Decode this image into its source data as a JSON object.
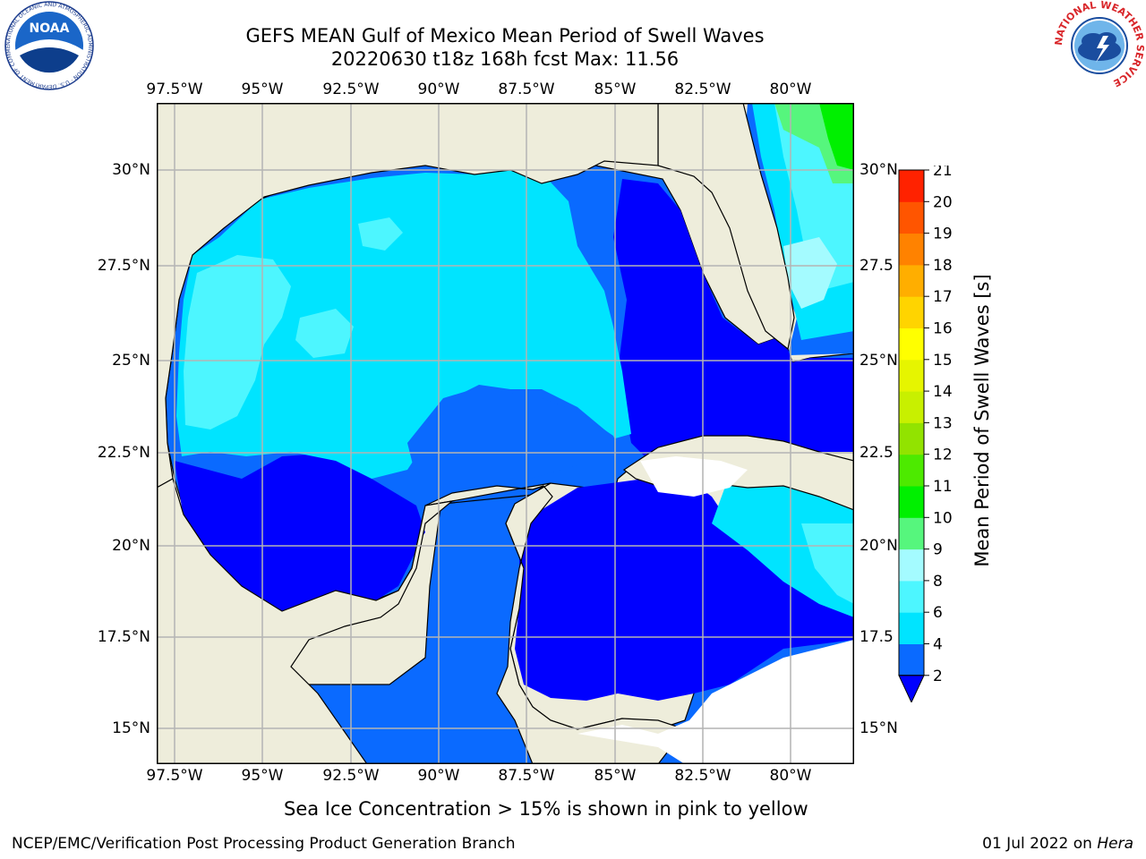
{
  "title": {
    "line1": "GEFS MEAN Gulf of Mexico Mean Period of Swell Waves",
    "line2": "20220630 t18z 168h fcst   Max: 11.56"
  },
  "map": {
    "lon_ticks": [
      "97.5°W",
      "95°W",
      "92.5°W",
      "90°W",
      "87.5°W",
      "85°W",
      "82.5°W",
      "80°W"
    ],
    "lat_ticks_left": [
      "30°N",
      "27.5°N",
      "25°N",
      "22.5°N",
      "20°N",
      "17.5°N",
      "15°N"
    ],
    "lat_ticks_right": [
      "30°N",
      "27.5",
      "25°N",
      "22.5",
      "20°N",
      "17.5",
      "15°N"
    ],
    "land_color": "#eeeddb",
    "no_data_color": "#ffffff",
    "grid_color": "#b4b4b4"
  },
  "colorbar": {
    "label": "Mean Period of Swell Waves [s]",
    "tick_labels": [
      "2",
      "4",
      "6",
      "8",
      "9",
      "10",
      "11",
      "12",
      "13",
      "14",
      "15",
      "16",
      "17",
      "18",
      "19",
      "20",
      "21"
    ],
    "colors": [
      "#0a6aff",
      "#00e4ff",
      "#4df6ff",
      "#a4fbff",
      "#56f67d",
      "#00f000",
      "#4dea00",
      "#92e300",
      "#c8f000",
      "#e6f500",
      "#ffff00",
      "#ffd400",
      "#ffae00",
      "#ff8200",
      "#ff5500",
      "#ff2200"
    ],
    "under_color": "#0000ff"
  },
  "caption": "Sea Ice Concentration > 15% is shown in pink to yellow",
  "footer": {
    "left": "NCEP/EMC/Verification Post Processing Product Generation Branch",
    "right_date": "01 Jul 2022 on",
    "right_host": "Hera"
  },
  "logos": {
    "left": {
      "text": "NOAA",
      "ring_text": "NATIONAL OCEANIC AND ATMOSPHERIC ADMINISTRATION · U.S. DEPARTMENT OF COMMERCE"
    },
    "right": {
      "ring_text": "NATIONAL WEATHER SERVICE"
    }
  }
}
